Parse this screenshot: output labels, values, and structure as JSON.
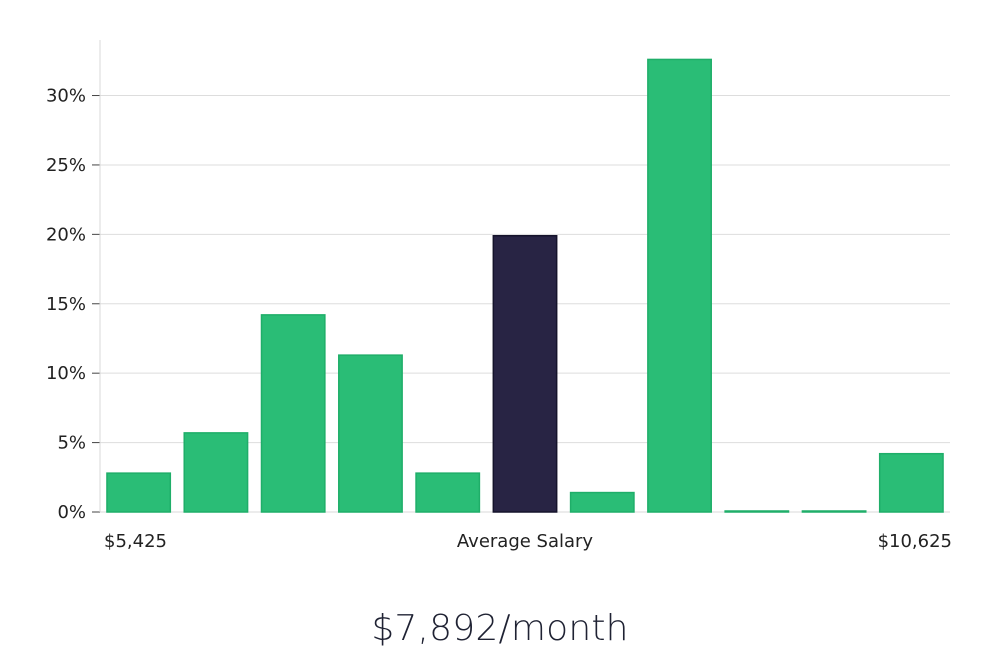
{
  "chart_data": {
    "type": "bar",
    "categories": [
      "1",
      "2",
      "3",
      "4",
      "5",
      "6",
      "7",
      "8",
      "9",
      "10",
      "11"
    ],
    "values": [
      2.8,
      5.7,
      14.2,
      11.3,
      2.8,
      19.9,
      1.4,
      32.6,
      0.05,
      0.05,
      4.2
    ],
    "highlight_index": 5,
    "ylim": [
      0,
      34
    ],
    "yticks": [
      0,
      5,
      10,
      15,
      20,
      25,
      30
    ],
    "ytick_labels": [
      "0%",
      "5%",
      "10%",
      "15%",
      "20%",
      "25%",
      "30%"
    ],
    "x_labels": {
      "left": "$5,425",
      "center": "Average Salary",
      "right": "$10,625"
    },
    "grid": true,
    "colors": {
      "bar": "#2abd76",
      "bar_stroke": "#1fae69",
      "highlight": "#282444",
      "highlight_stroke": "#15132b",
      "grid": "#dddddd",
      "axis": "#d8d8d8"
    }
  },
  "headline": "$7,892/month"
}
